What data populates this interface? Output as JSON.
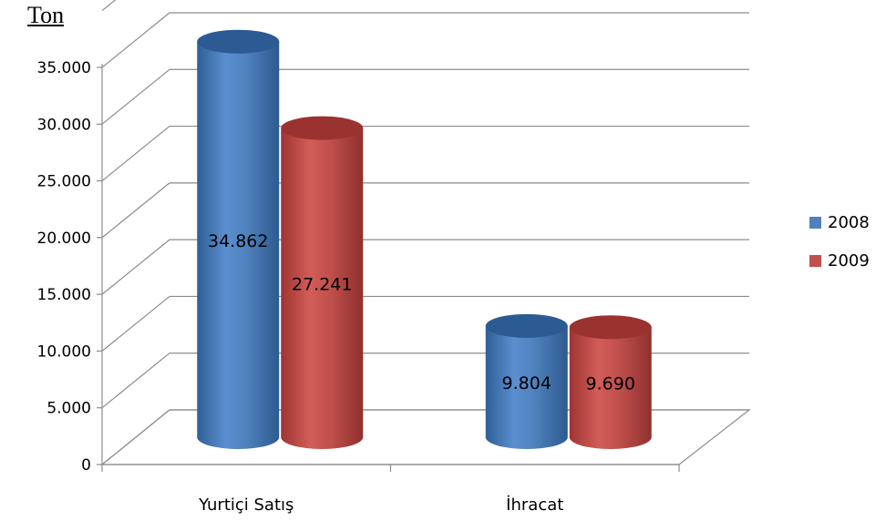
{
  "unit_label": "Ton",
  "chart_data": {
    "type": "bar",
    "style": "3d-cylinder",
    "categories": [
      "Yurtiçi Satış",
      "İhracat"
    ],
    "series": [
      {
        "name": "2008",
        "color": "#4f81bd",
        "values": [
          34862,
          9804
        ],
        "labels": [
          "34.862",
          "9.804"
        ]
      },
      {
        "name": "2009",
        "color": "#c0504d",
        "values": [
          27241,
          9690
        ],
        "labels": [
          "27.241",
          "9.690"
        ]
      }
    ],
    "y_ticks": [
      "0",
      "5.000",
      "10.000",
      "15.000",
      "20.000",
      "25.000",
      "30.000",
      "35.000"
    ],
    "ylim": [
      0,
      35000
    ],
    "grid": true,
    "legend_position": "right"
  }
}
